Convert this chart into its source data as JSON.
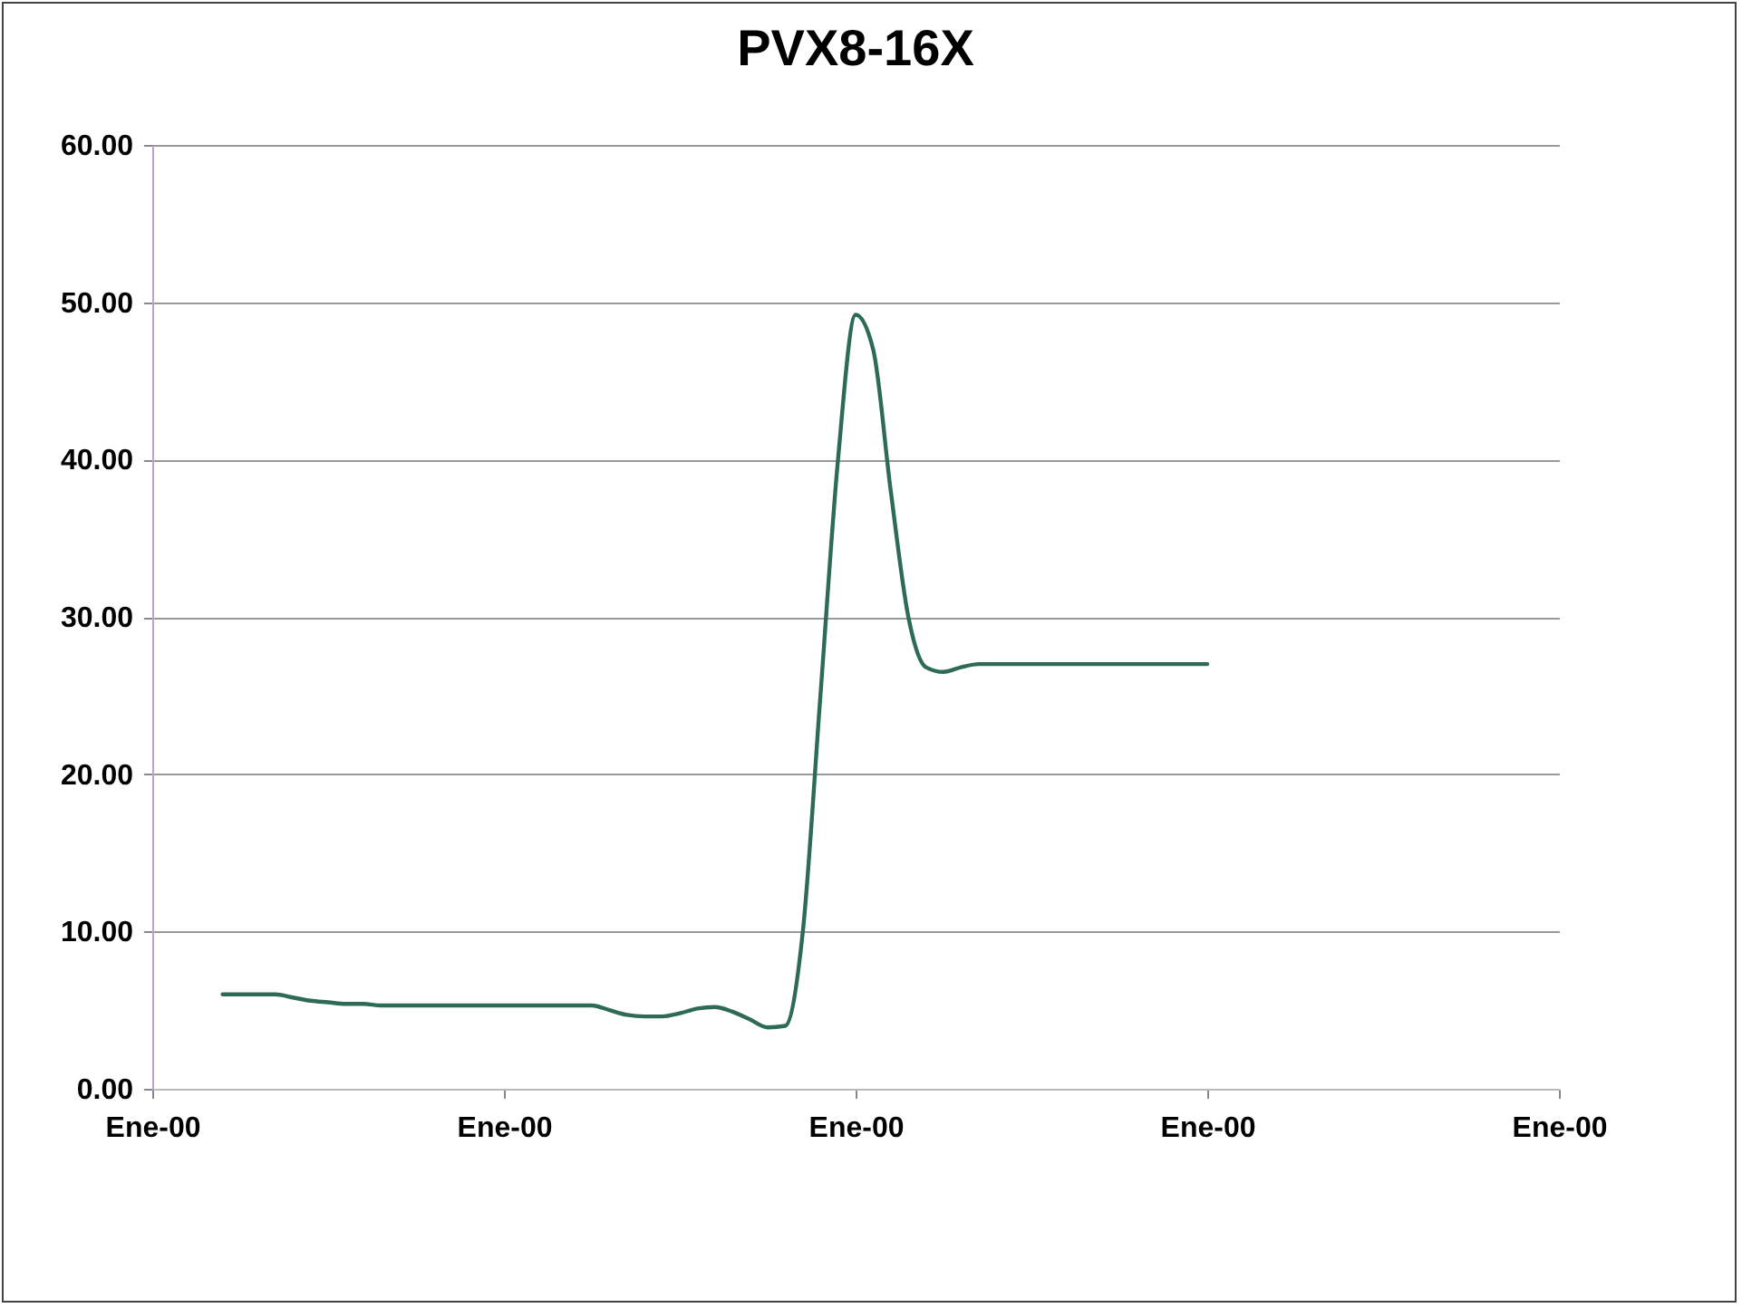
{
  "chart_data": {
    "type": "line",
    "title": "PVX8-16X",
    "categories": [
      "Ene-00",
      null,
      null,
      null,
      null,
      null,
      null,
      null,
      null,
      null,
      null,
      null,
      null,
      null,
      null,
      null,
      null,
      null,
      null,
      null,
      "Ene-00",
      null,
      null,
      null,
      null,
      null,
      null,
      null,
      null,
      null,
      null,
      null,
      null,
      null,
      null,
      null,
      null,
      null,
      null,
      null,
      "Ene-00",
      null,
      null,
      null,
      null,
      null,
      null,
      null,
      null,
      null,
      null,
      null,
      null,
      null,
      null,
      null,
      null,
      null,
      null,
      null,
      "Ene-00",
      null,
      null,
      null,
      null,
      null,
      null,
      null,
      null,
      null,
      null,
      null,
      null,
      null,
      null,
      null,
      null,
      null,
      null,
      null,
      "Ene-00"
    ],
    "series": [
      {
        "color": "#2e6b57",
        "values": [
          null,
          null,
          null,
          null,
          6.0,
          6.0,
          6.0,
          6.0,
          5.8,
          5.6,
          5.5,
          5.4,
          5.4,
          5.3,
          5.3,
          5.3,
          5.3,
          5.3,
          5.3,
          5.3,
          5.3,
          5.3,
          5.3,
          5.3,
          5.3,
          5.3,
          5.0,
          4.7,
          4.6,
          4.6,
          4.8,
          5.1,
          5.2,
          4.9,
          4.4,
          3.9,
          4.0,
          10,
          25,
          40,
          49.2,
          47,
          38,
          30,
          26.8,
          26.5,
          26.8,
          27,
          27,
          27,
          27,
          27,
          27,
          27,
          27,
          27,
          27,
          27,
          27,
          27,
          27,
          null,
          null,
          null,
          null,
          null,
          null,
          null,
          null,
          null,
          null,
          null,
          null,
          null,
          null,
          null,
          null,
          null,
          null,
          null,
          null
        ]
      }
    ],
    "ylim": [
      0,
      60
    ],
    "yticks": [
      {
        "value": 0,
        "label": "0.00"
      },
      {
        "value": 10,
        "label": "10.00"
      },
      {
        "value": 20,
        "label": "20.00"
      },
      {
        "value": 30,
        "label": "30.00"
      },
      {
        "value": 40,
        "label": "40.00"
      },
      {
        "value": 50,
        "label": "50.00"
      },
      {
        "value": 60,
        "label": "60.00"
      }
    ],
    "grid": "y",
    "marker": "none",
    "line_style": "solid"
  }
}
